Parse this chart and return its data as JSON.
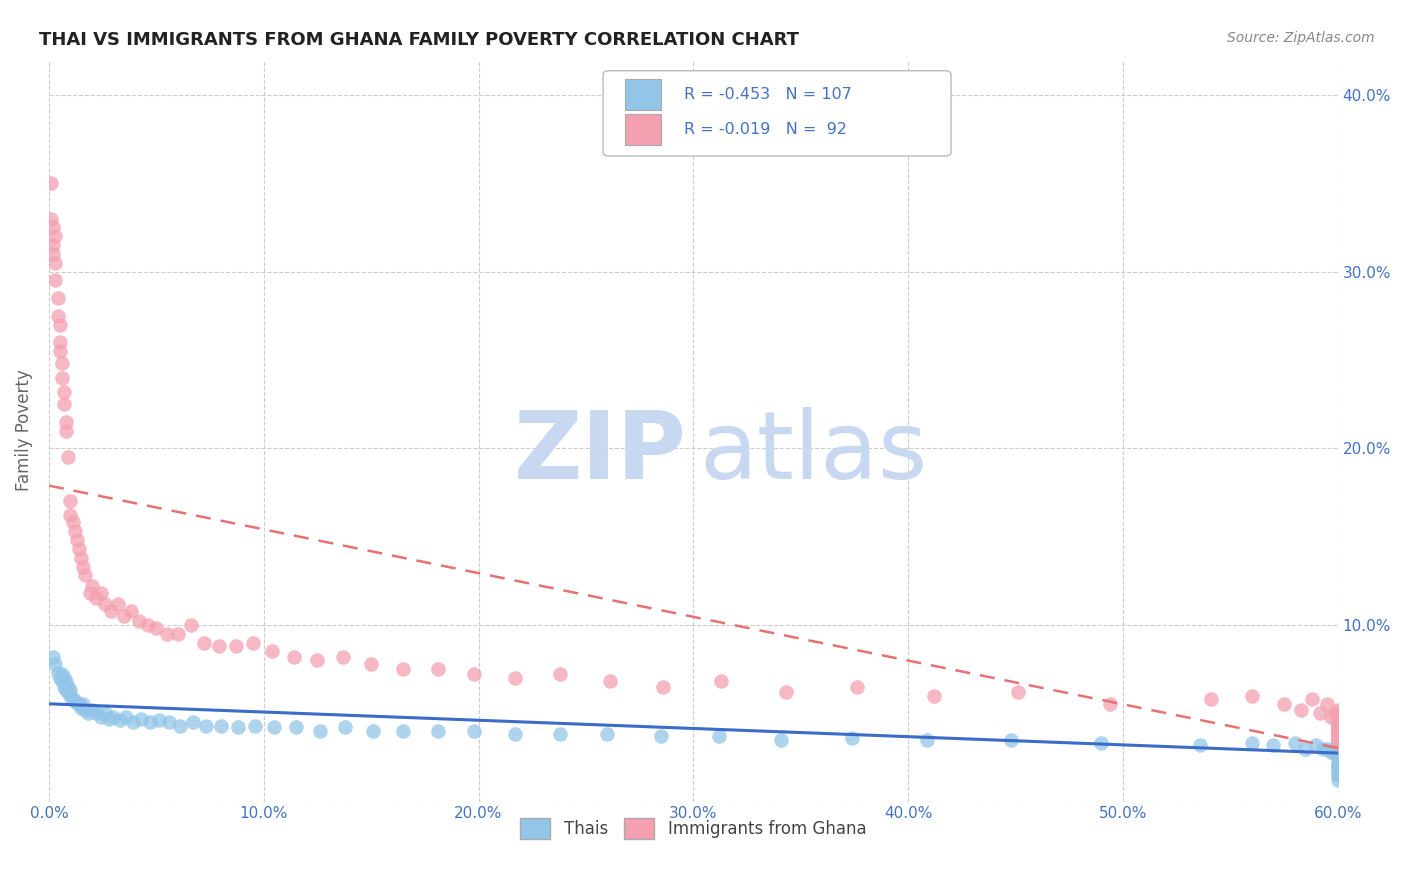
{
  "title": "THAI VS IMMIGRANTS FROM GHANA FAMILY POVERTY CORRELATION CHART",
  "source": "Source: ZipAtlas.com",
  "ylabel": "Family Poverty",
  "xlim": [
    0.0,
    0.6
  ],
  "ylim": [
    0.0,
    0.42
  ],
  "thai_color": "#92C5E8",
  "ghana_color": "#F4A0B0",
  "thai_line_color": "#3A6CC8",
  "ghana_line_color": "#E87070",
  "watermark_zip_color": "#C8D8F0",
  "watermark_atlas_color": "#C8D8F0",
  "background_color": "#FFFFFF",
  "tick_color": "#4472C4",
  "label_color": "#666666",
  "grid_color": "#CCCCCC",
  "thai_x": [
    0.002,
    0.003,
    0.004,
    0.005,
    0.006,
    0.006,
    0.007,
    0.007,
    0.008,
    0.008,
    0.009,
    0.009,
    0.01,
    0.01,
    0.011,
    0.012,
    0.013,
    0.014,
    0.015,
    0.016,
    0.017,
    0.018,
    0.02,
    0.022,
    0.024,
    0.026,
    0.028,
    0.03,
    0.033,
    0.036,
    0.039,
    0.043,
    0.047,
    0.051,
    0.056,
    0.061,
    0.067,
    0.073,
    0.08,
    0.088,
    0.096,
    0.105,
    0.115,
    0.126,
    0.138,
    0.151,
    0.165,
    0.181,
    0.198,
    0.217,
    0.238,
    0.26,
    0.285,
    0.312,
    0.341,
    0.374,
    0.409,
    0.448,
    0.49,
    0.536,
    0.56,
    0.57,
    0.58,
    0.585,
    0.59,
    0.593,
    0.595,
    0.597,
    0.598,
    0.599,
    0.6,
    0.6,
    0.6,
    0.6,
    0.6,
    0.6,
    0.6,
    0.6,
    0.6,
    0.6,
    0.6,
    0.6,
    0.6,
    0.6,
    0.6,
    0.6,
    0.6,
    0.6,
    0.6,
    0.6,
    0.6,
    0.6,
    0.6,
    0.6,
    0.6,
    0.6,
    0.6,
    0.6,
    0.6,
    0.6,
    0.6,
    0.6,
    0.6,
    0.6,
    0.6,
    0.6,
    0.6
  ],
  "thai_y": [
    0.082,
    0.078,
    0.073,
    0.07,
    0.068,
    0.072,
    0.065,
    0.07,
    0.063,
    0.068,
    0.062,
    0.065,
    0.06,
    0.063,
    0.058,
    0.057,
    0.056,
    0.055,
    0.053,
    0.055,
    0.052,
    0.05,
    0.052,
    0.05,
    0.048,
    0.05,
    0.047,
    0.048,
    0.046,
    0.048,
    0.045,
    0.047,
    0.045,
    0.046,
    0.045,
    0.043,
    0.045,
    0.043,
    0.043,
    0.042,
    0.043,
    0.042,
    0.042,
    0.04,
    0.042,
    0.04,
    0.04,
    0.04,
    0.04,
    0.038,
    0.038,
    0.038,
    0.037,
    0.037,
    0.035,
    0.036,
    0.035,
    0.035,
    0.033,
    0.032,
    0.033,
    0.032,
    0.033,
    0.03,
    0.032,
    0.03,
    0.03,
    0.028,
    0.03,
    0.027,
    0.032,
    0.03,
    0.028,
    0.038,
    0.035,
    0.04,
    0.037,
    0.033,
    0.03,
    0.035,
    0.025,
    0.027,
    0.03,
    0.033,
    0.028,
    0.025,
    0.03,
    0.033,
    0.025,
    0.027,
    0.028,
    0.03,
    0.033,
    0.035,
    0.025,
    0.027,
    0.03,
    0.02,
    0.025,
    0.03,
    0.022,
    0.025,
    0.02,
    0.015,
    0.018,
    0.012,
    0.015
  ],
  "ghana_x": [
    0.001,
    0.001,
    0.002,
    0.002,
    0.002,
    0.003,
    0.003,
    0.003,
    0.004,
    0.004,
    0.005,
    0.005,
    0.005,
    0.006,
    0.006,
    0.007,
    0.007,
    0.008,
    0.008,
    0.009,
    0.01,
    0.01,
    0.011,
    0.012,
    0.013,
    0.014,
    0.015,
    0.016,
    0.017,
    0.019,
    0.02,
    0.022,
    0.024,
    0.026,
    0.029,
    0.032,
    0.035,
    0.038,
    0.042,
    0.046,
    0.05,
    0.055,
    0.06,
    0.066,
    0.072,
    0.079,
    0.087,
    0.095,
    0.104,
    0.114,
    0.125,
    0.137,
    0.15,
    0.165,
    0.181,
    0.198,
    0.217,
    0.238,
    0.261,
    0.286,
    0.313,
    0.343,
    0.376,
    0.412,
    0.451,
    0.494,
    0.541,
    0.56,
    0.575,
    0.583,
    0.588,
    0.592,
    0.595,
    0.597,
    0.599,
    0.6,
    0.6,
    0.6,
    0.6,
    0.6,
    0.6,
    0.6,
    0.6,
    0.6,
    0.6,
    0.6,
    0.6,
    0.6,
    0.6,
    0.6,
    0.6,
    0.6
  ],
  "ghana_y": [
    0.35,
    0.33,
    0.325,
    0.315,
    0.31,
    0.32,
    0.305,
    0.295,
    0.285,
    0.275,
    0.27,
    0.26,
    0.255,
    0.248,
    0.24,
    0.232,
    0.225,
    0.215,
    0.21,
    0.195,
    0.17,
    0.162,
    0.158,
    0.153,
    0.148,
    0.143,
    0.138,
    0.133,
    0.128,
    0.118,
    0.122,
    0.115,
    0.118,
    0.112,
    0.108,
    0.112,
    0.105,
    0.108,
    0.102,
    0.1,
    0.098,
    0.095,
    0.095,
    0.1,
    0.09,
    0.088,
    0.088,
    0.09,
    0.085,
    0.082,
    0.08,
    0.082,
    0.078,
    0.075,
    0.075,
    0.072,
    0.07,
    0.072,
    0.068,
    0.065,
    0.068,
    0.062,
    0.065,
    0.06,
    0.062,
    0.055,
    0.058,
    0.06,
    0.055,
    0.052,
    0.058,
    0.05,
    0.055,
    0.048,
    0.05,
    0.052,
    0.045,
    0.048,
    0.042,
    0.045,
    0.048,
    0.04,
    0.042,
    0.045,
    0.038,
    0.04,
    0.043,
    0.035,
    0.038,
    0.033,
    0.037,
    0.04
  ]
}
